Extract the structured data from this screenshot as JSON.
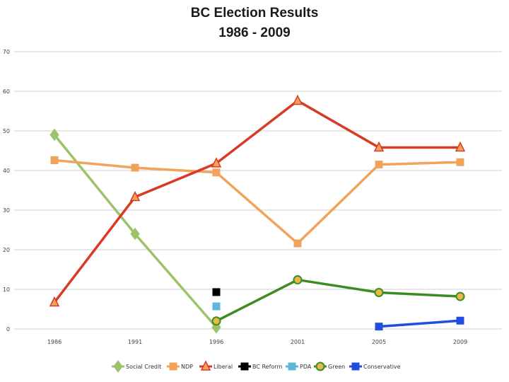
{
  "chart_data": {
    "type": "line",
    "title": "BC Election Results",
    "subtitle": "1986 - 2009",
    "xlabel": "",
    "ylabel": "",
    "categories": [
      "1986",
      "1991",
      "1996",
      "2001",
      "2005",
      "2009"
    ],
    "ylim": [
      0,
      70
    ],
    "yticks": [
      "0",
      "10",
      "20",
      "30",
      "40",
      "50",
      "60",
      "70"
    ],
    "grid": true,
    "legend_position": "bottom",
    "series": [
      {
        "name": "Social Credit",
        "color": "#9dc36a",
        "marker": "diamond",
        "values": [
          49,
          24,
          0.4,
          null,
          null,
          null
        ]
      },
      {
        "name": "NDP",
        "color": "#f2a35a",
        "marker": "square",
        "values": [
          42.6,
          40.7,
          39.5,
          21.6,
          41.5,
          42.1
        ]
      },
      {
        "name": "Liberal",
        "color": "#d93a26",
        "marker": "triangle",
        "values": [
          6.7,
          33.3,
          41.8,
          57.6,
          45.8,
          45.8
        ]
      },
      {
        "name": "BC Reform",
        "color": "#000000",
        "marker": "square",
        "values": [
          null,
          null,
          9.3,
          null,
          null,
          null
        ]
      },
      {
        "name": "PDA",
        "color": "#5bb8d9",
        "marker": "square",
        "values": [
          null,
          null,
          5.7,
          null,
          null,
          null
        ]
      },
      {
        "name": "Green",
        "color": "#3d8c22",
        "marker": "circle",
        "values": [
          null,
          null,
          2.0,
          12.4,
          9.2,
          8.2
        ]
      },
      {
        "name": "Conservative",
        "color": "#1f4ee0",
        "marker": "square",
        "values": [
          null,
          null,
          null,
          null,
          0.6,
          2.1
        ]
      }
    ]
  }
}
